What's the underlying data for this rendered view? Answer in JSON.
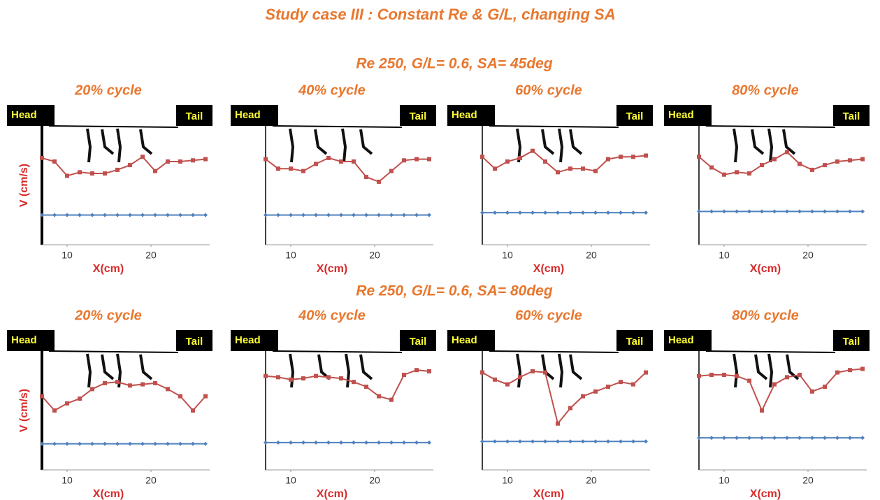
{
  "title": "Study case III : Constant Re & G/L, changing SA",
  "sections": [
    "Re 250, G/L= 0.6, SA= 45deg",
    "Re 250, G/L= 0.6, SA= 80deg"
  ],
  "chart_data": [
    {
      "type": "line",
      "title": "20% cycle",
      "annotations": [
        "Head",
        "Tail"
      ],
      "x_label": "X(cm)",
      "y_label": "V (cm/s)",
      "x": [
        7,
        8.5,
        10,
        11.5,
        13,
        14.5,
        16,
        17.5,
        19,
        20.5,
        22,
        23.5,
        25,
        26.5
      ],
      "xlim": [
        7,
        27
      ],
      "xticks": [
        10,
        20
      ],
      "ylim": [
        0,
        100
      ],
      "series": [
        {
          "color": "#c0504d",
          "values": [
            73,
            70,
            58,
            61,
            60,
            60,
            63,
            67,
            74,
            62,
            70,
            70,
            71,
            72
          ]
        },
        {
          "color": "#4f81bd",
          "values": [
            25,
            25,
            25,
            25,
            25,
            25,
            25,
            25,
            25,
            25,
            25,
            25,
            25,
            25
          ]
        }
      ]
    },
    {
      "type": "line",
      "title": "40% cycle",
      "annotations": [
        "Head",
        "Tail"
      ],
      "x_label": "X(cm)",
      "x": [
        7,
        8.5,
        10,
        11.5,
        13,
        14.5,
        16,
        17.5,
        19,
        20.5,
        22,
        23.5,
        25,
        26.5
      ],
      "xlim": [
        7,
        27
      ],
      "xticks": [
        10,
        20
      ],
      "ylim": [
        0,
        100
      ],
      "series": [
        {
          "color": "#c0504d",
          "values": [
            72,
            64,
            64,
            62,
            68,
            73,
            70,
            70,
            57,
            53,
            62,
            71,
            72,
            72
          ]
        },
        {
          "color": "#4f81bd",
          "values": [
            25,
            25,
            25,
            25,
            25,
            25,
            25,
            25,
            25,
            25,
            25,
            25,
            25,
            25
          ]
        }
      ]
    },
    {
      "type": "line",
      "title": "60% cycle",
      "annotations": [
        "Head",
        "Tail"
      ],
      "x_label": "X(cm)",
      "x": [
        7,
        8.5,
        10,
        11.5,
        13,
        14.5,
        16,
        17.5,
        19,
        20.5,
        22,
        23.5,
        25,
        26.5
      ],
      "xlim": [
        7,
        27
      ],
      "xticks": [
        10,
        20
      ],
      "ylim": [
        0,
        100
      ],
      "series": [
        {
          "color": "#c0504d",
          "values": [
            74,
            64,
            70,
            73,
            79,
            70,
            61,
            64,
            64,
            62,
            72,
            74,
            74,
            75
          ]
        },
        {
          "color": "#4f81bd",
          "values": [
            27,
            27,
            27,
            27,
            27,
            27,
            27,
            27,
            27,
            27,
            27,
            27,
            27,
            27
          ]
        }
      ]
    },
    {
      "type": "line",
      "title": "80% cycle",
      "annotations": [
        "Head",
        "Tail"
      ],
      "x_label": "X(cm)",
      "x": [
        7,
        8.5,
        10,
        11.5,
        13,
        14.5,
        16,
        17.5,
        19,
        20.5,
        22,
        23.5,
        25,
        26.5
      ],
      "xlim": [
        7,
        27
      ],
      "xticks": [
        10,
        20
      ],
      "ylim": [
        0,
        100
      ],
      "series": [
        {
          "color": "#c0504d",
          "values": [
            74,
            65,
            59,
            61,
            60,
            67,
            72,
            78,
            68,
            63,
            67,
            70,
            71,
            72
          ]
        },
        {
          "color": "#4f81bd",
          "values": [
            28,
            28,
            28,
            28,
            28,
            28,
            28,
            28,
            28,
            28,
            28,
            28,
            28,
            28
          ]
        }
      ]
    },
    {
      "type": "line",
      "title": "20% cycle",
      "annotations": [
        "Head",
        "Tail"
      ],
      "x_label": "X(cm)",
      "y_label": "V (cm/s)",
      "x": [
        7,
        8.5,
        10,
        11.5,
        13,
        14.5,
        16,
        17.5,
        19,
        20.5,
        22,
        23.5,
        25,
        26.5
      ],
      "xlim": [
        7,
        27
      ],
      "xticks": [
        10,
        20
      ],
      "ylim": [
        0,
        100
      ],
      "series": [
        {
          "color": "#c0504d",
          "values": [
            62,
            50,
            56,
            60,
            68,
            73,
            74,
            71,
            72,
            73,
            68,
            62,
            50,
            62
          ]
        },
        {
          "color": "#4f81bd",
          "values": [
            22,
            22,
            22,
            22,
            22,
            22,
            22,
            22,
            22,
            22,
            22,
            22,
            22,
            22
          ]
        }
      ]
    },
    {
      "type": "line",
      "title": "40% cycle",
      "annotations": [
        "Head",
        "Tail"
      ],
      "x_label": "X(cm)",
      "x": [
        7,
        8.5,
        10,
        11.5,
        13,
        14.5,
        16,
        17.5,
        19,
        20.5,
        22,
        23.5,
        25,
        26.5
      ],
      "xlim": [
        7,
        27
      ],
      "xticks": [
        10,
        20
      ],
      "ylim": [
        0,
        100
      ],
      "series": [
        {
          "color": "#c0504d",
          "values": [
            79,
            78,
            76,
            77,
            79,
            78,
            77,
            74,
            70,
            62,
            59,
            80,
            84,
            83
          ]
        },
        {
          "color": "#4f81bd",
          "values": [
            23,
            23,
            23,
            23,
            23,
            23,
            23,
            23,
            23,
            23,
            23,
            23,
            23,
            23
          ]
        }
      ]
    },
    {
      "type": "line",
      "title": "60% cycle",
      "annotations": [
        "Head",
        "Tail"
      ],
      "x_label": "X(cm)",
      "x": [
        7,
        8.5,
        10,
        11.5,
        13,
        14.5,
        16,
        17.5,
        19,
        20.5,
        22,
        23.5,
        25,
        26.5
      ],
      "xlim": [
        7,
        27
      ],
      "xticks": [
        10,
        20
      ],
      "ylim": [
        0,
        100
      ],
      "series": [
        {
          "color": "#c0504d",
          "values": [
            82,
            76,
            72,
            78,
            83,
            82,
            39,
            52,
            62,
            66,
            70,
            74,
            72,
            82
          ]
        },
        {
          "color": "#4f81bd",
          "values": [
            24,
            24,
            24,
            24,
            24,
            24,
            24,
            24,
            24,
            24,
            24,
            24,
            24,
            24
          ]
        }
      ]
    },
    {
      "type": "line",
      "title": "80% cycle",
      "annotations": [
        "Head",
        "Tail"
      ],
      "x_label": "X(cm)",
      "x": [
        7,
        8.5,
        10,
        11.5,
        13,
        14.5,
        16,
        17.5,
        19,
        20.5,
        22,
        23.5,
        25,
        26.5
      ],
      "xlim": [
        7,
        27
      ],
      "xticks": [
        10,
        20
      ],
      "ylim": [
        0,
        100
      ],
      "series": [
        {
          "color": "#c0504d",
          "values": [
            79,
            80,
            80,
            79,
            75,
            50,
            72,
            78,
            80,
            66,
            70,
            82,
            84,
            85
          ]
        },
        {
          "color": "#4f81bd",
          "values": [
            27,
            27,
            27,
            27,
            27,
            27,
            27,
            27,
            27,
            27,
            27,
            27,
            27,
            27
          ]
        }
      ]
    }
  ]
}
